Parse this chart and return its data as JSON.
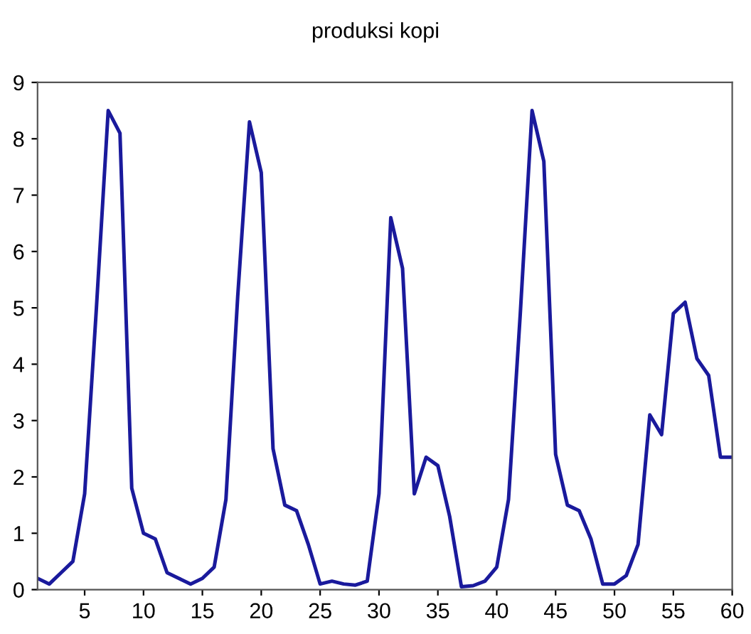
{
  "chart_data": {
    "type": "line",
    "title": "produksi kopi",
    "x": [
      1,
      2,
      3,
      4,
      5,
      6,
      7,
      8,
      9,
      10,
      11,
      12,
      13,
      14,
      15,
      16,
      17,
      18,
      19,
      20,
      21,
      22,
      23,
      24,
      25,
      26,
      27,
      28,
      29,
      30,
      31,
      32,
      33,
      34,
      35,
      36,
      37,
      38,
      39,
      40,
      41,
      42,
      43,
      44,
      45,
      46,
      47,
      48,
      49,
      50,
      51,
      52,
      53,
      54,
      55,
      56,
      57,
      58,
      59,
      60
    ],
    "series": [
      {
        "color": "#1a1a9c",
        "values": [
          0.2,
          0.1,
          0.3,
          0.5,
          1.7,
          5.0,
          8.5,
          8.1,
          1.8,
          1.0,
          0.9,
          0.3,
          0.2,
          0.1,
          0.2,
          0.4,
          1.6,
          5.2,
          8.3,
          7.4,
          2.5,
          1.5,
          1.4,
          0.8,
          0.1,
          0.15,
          0.1,
          0.08,
          0.15,
          1.7,
          6.6,
          5.7,
          1.7,
          2.35,
          2.2,
          1.3,
          0.05,
          0.07,
          0.15,
          0.4,
          1.6,
          4.9,
          8.5,
          7.6,
          2.4,
          1.5,
          1.4,
          0.9,
          0.1,
          0.1,
          0.25,
          0.8,
          3.1,
          2.75,
          4.9,
          5.1,
          4.1,
          3.8,
          2.35,
          2.35
        ]
      }
    ],
    "xlim": [
      1,
      60
    ],
    "xticks": [
      5,
      10,
      15,
      20,
      25,
      30,
      35,
      40,
      45,
      50,
      55,
      60
    ],
    "ylim": [
      0,
      9
    ],
    "yticks": [
      0,
      1,
      2,
      3,
      4,
      5,
      6,
      7,
      8,
      9
    ],
    "grid": false,
    "legend": false,
    "marker": "none",
    "line_style": "solid"
  }
}
